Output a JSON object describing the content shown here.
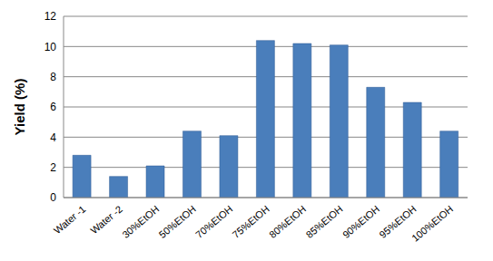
{
  "chart_data": {
    "type": "bar",
    "y_label": "Yield (%)",
    "categories": [
      "Water -1",
      "Water -2",
      "30%EtOH",
      "50%EtOH",
      "70%EtOH",
      "75%EtOH",
      "80%EtOH",
      "85%EtOH",
      "90%EtOH",
      "95%EtOH",
      "100%EtOH"
    ],
    "values": [
      2.8,
      1.4,
      2.1,
      4.4,
      4.1,
      10.4,
      10.2,
      10.1,
      7.3,
      6.3,
      4.4
    ],
    "color": "#4a7ebb",
    "ylim": [
      0,
      12
    ],
    "yticks": [
      0,
      2,
      4,
      6,
      8,
      10,
      12
    ],
    "grid": true
  }
}
